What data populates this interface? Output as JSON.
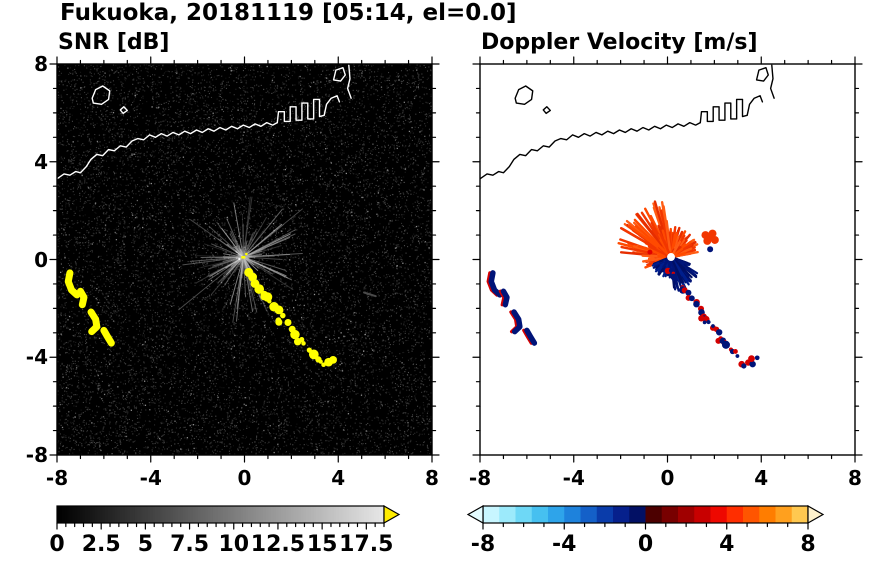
{
  "figure": {
    "title": "Fukuoka, 20181119 [05:14, el=0.0]",
    "background": "#ffffff"
  },
  "coastline": {
    "open_paths": [
      [
        [
          -8.0,
          3.3
        ],
        [
          -7.7,
          3.5
        ],
        [
          -7.45,
          3.45
        ],
        [
          -7.2,
          3.6
        ],
        [
          -7.0,
          3.55
        ],
        [
          -6.75,
          3.8
        ],
        [
          -6.55,
          4.1
        ],
        [
          -6.3,
          4.3
        ],
        [
          -6.05,
          4.25
        ],
        [
          -5.8,
          4.5
        ],
        [
          -5.55,
          4.45
        ],
        [
          -5.3,
          4.65
        ],
        [
          -5.05,
          4.6
        ],
        [
          -4.8,
          4.85
        ],
        [
          -4.55,
          4.95
        ],
        [
          -4.3,
          4.9
        ],
        [
          -4.05,
          5.1
        ],
        [
          -3.8,
          5.0
        ],
        [
          -3.55,
          5.15
        ],
        [
          -3.3,
          5.05
        ],
        [
          -3.05,
          5.2
        ],
        [
          -2.8,
          5.1
        ],
        [
          -2.55,
          5.25
        ],
        [
          -2.3,
          5.15
        ],
        [
          -2.05,
          5.3
        ],
        [
          -1.8,
          5.2
        ],
        [
          -1.55,
          5.35
        ],
        [
          -1.3,
          5.25
        ],
        [
          -1.05,
          5.4
        ],
        [
          -0.8,
          5.3
        ],
        [
          -0.55,
          5.45
        ],
        [
          -0.3,
          5.35
        ],
        [
          -0.05,
          5.5
        ],
        [
          0.2,
          5.4
        ],
        [
          0.45,
          5.55
        ],
        [
          0.7,
          5.45
        ],
        [
          0.95,
          5.6
        ],
        [
          1.2,
          5.5
        ],
        [
          1.4,
          5.6
        ]
      ],
      [
        [
          1.4,
          5.6
        ],
        [
          1.45,
          6.05
        ],
        [
          1.7,
          6.05
        ],
        [
          1.7,
          5.65
        ],
        [
          1.95,
          5.65
        ],
        [
          1.95,
          6.25
        ],
        [
          2.2,
          6.25
        ],
        [
          2.2,
          5.7
        ],
        [
          2.45,
          5.7
        ],
        [
          2.45,
          6.4
        ],
        [
          2.7,
          6.4
        ],
        [
          2.7,
          5.75
        ],
        [
          2.95,
          5.75
        ],
        [
          2.95,
          6.55
        ],
        [
          3.2,
          6.55
        ],
        [
          3.2,
          5.85
        ],
        [
          3.4,
          5.9
        ],
        [
          3.5,
          6.35
        ],
        [
          3.7,
          6.6
        ],
        [
          3.95,
          6.7
        ],
        [
          4.05,
          6.45
        ]
      ],
      [
        [
          4.45,
          7.95
        ],
        [
          4.5,
          7.4
        ],
        [
          4.4,
          7.0
        ],
        [
          4.55,
          6.6
        ]
      ]
    ],
    "closed_paths": [
      [
        [
          3.8,
          7.35
        ],
        [
          3.9,
          7.75
        ],
        [
          4.2,
          7.85
        ],
        [
          4.3,
          7.55
        ],
        [
          4.1,
          7.3
        ]
      ],
      [
        [
          -6.5,
          6.6
        ],
        [
          -6.35,
          6.95
        ],
        [
          -6.05,
          7.1
        ],
        [
          -5.75,
          6.9
        ],
        [
          -5.8,
          6.55
        ],
        [
          -6.1,
          6.35
        ],
        [
          -6.45,
          6.4
        ]
      ],
      [
        [
          -5.3,
          6.12
        ],
        [
          -5.15,
          6.25
        ],
        [
          -5.0,
          6.1
        ],
        [
          -5.18,
          5.98
        ]
      ]
    ]
  },
  "echoes": {
    "streak_points": [
      [
        0.12,
        -0.5
      ],
      [
        0.3,
        -0.72
      ],
      [
        0.5,
        -0.95
      ],
      [
        0.68,
        -1.18
      ],
      [
        0.88,
        -1.42
      ],
      [
        1.06,
        -1.65
      ],
      [
        1.26,
        -1.9
      ],
      [
        1.44,
        -2.12
      ],
      [
        1.62,
        -2.35
      ],
      [
        1.82,
        -2.58
      ],
      [
        2.0,
        -2.8
      ],
      [
        2.2,
        -3.02
      ],
      [
        2.4,
        -3.25
      ],
      [
        2.58,
        -3.48
      ],
      [
        2.78,
        -3.7
      ],
      [
        2.96,
        -3.92
      ],
      [
        3.15,
        -4.15
      ],
      [
        3.32,
        -4.35
      ],
      [
        3.55,
        -4.25
      ],
      [
        3.75,
        -4.1
      ],
      [
        2.32,
        -3.42
      ],
      [
        1.52,
        -2.52
      ],
      [
        0.95,
        -1.55
      ]
    ],
    "blob_paths": [
      [
        [
          -7.45,
          -0.55
        ],
        [
          -7.52,
          -0.9
        ],
        [
          -7.38,
          -1.25
        ],
        [
          -7.15,
          -1.45
        ]
      ],
      [
        [
          -7.0,
          -1.3
        ],
        [
          -6.85,
          -1.55
        ],
        [
          -6.92,
          -1.85
        ]
      ],
      [
        [
          -6.55,
          -2.15
        ],
        [
          -6.35,
          -2.45
        ],
        [
          -6.3,
          -2.75
        ],
        [
          -6.52,
          -2.95
        ]
      ],
      [
        [
          -6.0,
          -2.9
        ],
        [
          -5.85,
          -3.15
        ],
        [
          -5.68,
          -3.42
        ]
      ]
    ]
  },
  "chart_data": [
    {
      "type": "heatmap",
      "panel": "snr",
      "title": "SNR [dB]",
      "xlim": [
        -8,
        8
      ],
      "ylim": [
        -8,
        8
      ],
      "xticks": [
        -8,
        -4,
        0,
        4,
        8
      ],
      "yticks": [
        -8,
        -4,
        0,
        4,
        8
      ],
      "minor_tick": 1,
      "show_ylabels": true,
      "background": "#000000",
      "noise": {
        "count": 13000,
        "seed": 11,
        "gray_min": 18,
        "gray_max": 80,
        "bright_count": 320,
        "bright_min": 95,
        "bright_max": 150
      },
      "burst": {
        "center": [
          -0.05,
          0.1
        ],
        "rays": 170,
        "max_len": 2.6,
        "long_rays": [
          {
            "angle": 218,
            "len": 3.5
          },
          {
            "angle": 38,
            "len": 3.2
          }
        ],
        "core_color": "#ffff00"
      },
      "streak_color": "#ffff00",
      "blob_color": "#ffff00",
      "coast_color": "#ffffff",
      "extra_smudge": {
        "points": [
          [
            5.1,
            -1.35
          ],
          [
            5.6,
            -1.5
          ]
        ],
        "color": "#4a4a4a"
      },
      "colorbar": {
        "type": "gradient",
        "x_range": [
          0,
          18.5
        ],
        "tick_labels": [
          0,
          2.5,
          5,
          7.5,
          10,
          12.5,
          15,
          17.5
        ],
        "minor_tick": 0.5,
        "start_color": "#000000",
        "end_color": "#e6e6e6",
        "over_color": "#ffec00"
      }
    },
    {
      "type": "heatmap",
      "panel": "velocity",
      "title": "Doppler Velocity [m/s]",
      "xlim": [
        -8,
        8
      ],
      "ylim": [
        -8,
        8
      ],
      "xticks": [
        -8,
        -4,
        0,
        4,
        8
      ],
      "yticks": [
        -8,
        -4,
        0,
        4,
        8
      ],
      "minor_tick": 1,
      "show_ylabels": false,
      "background": "#ffffff",
      "burst": {
        "center": [
          0.15,
          0.1
        ],
        "seed": 23,
        "fans": [
          {
            "colors": [
              "#f23600",
              "#ff4a00",
              "#e62e00",
              "#ff5c14"
            ],
            "angle_range": [
              8,
              205
            ],
            "long_range": [
              95,
              175
            ],
            "max_len": 2.35,
            "short_len": 1.15,
            "count": 300,
            "width": 2.4
          },
          {
            "colors": [
              "#001478",
              "#000f66",
              "#001e8c"
            ],
            "angle_range": [
              200,
              342
            ],
            "long_range": [
              275,
              330
            ],
            "max_len": 1.35,
            "short_len": 0.8,
            "count": 260,
            "width": 2.2
          }
        ],
        "center_white_r": 4,
        "red_fleck": [
          -0.75,
          0.3
        ],
        "patches": [
          {
            "color": "#f23600",
            "points": [
              [
                1.62,
                1.0
              ],
              [
                1.85,
                0.92
              ],
              [
                2.02,
                0.8
              ],
              [
                1.7,
                0.76
              ],
              [
                1.92,
                1.06
              ]
            ],
            "r": 4
          },
          {
            "color": "#001478",
            "points": [
              [
                1.82,
                0.42
              ]
            ],
            "r": 3
          }
        ]
      },
      "streak_colors": {
        "main": "#001478",
        "fringe": "#d40000"
      },
      "blob_colors": {
        "main": "#001478",
        "fringe": "#d40000"
      },
      "coast_color": "#000000",
      "colorbar": {
        "type": "cells",
        "x_range": [
          -8,
          8
        ],
        "tick_labels": [
          -8,
          -4,
          0,
          4,
          8
        ],
        "minor_tick": 1,
        "colors": [
          "#c8f6ff",
          "#9ceafb",
          "#6ed8f6",
          "#46c0f0",
          "#2ea4ea",
          "#1e82dc",
          "#1460c8",
          "#0a3caa",
          "#06208c",
          "#021064",
          "#4c0000",
          "#780000",
          "#a00000",
          "#c80000",
          "#ee0800",
          "#ff2e00",
          "#ff5500",
          "#ff7d00",
          "#ffa01e",
          "#ffc850"
        ],
        "under_color": "#e4fcff",
        "over_color": "#fff2cc"
      }
    }
  ]
}
